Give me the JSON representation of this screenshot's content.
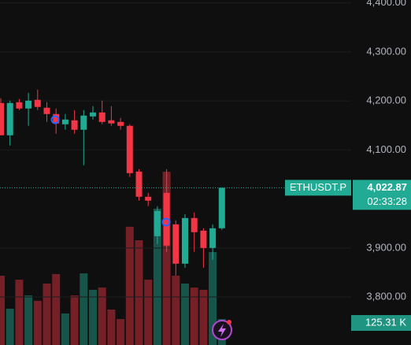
{
  "chart_data": {
    "type": "candlestick",
    "ylim": [
      3702,
      4406
    ],
    "yticks": [
      {
        "value": 4400,
        "label": "4,400.00"
      },
      {
        "value": 4300,
        "label": "4,300.00"
      },
      {
        "value": 4200,
        "label": "4,200.00"
      },
      {
        "value": 4100,
        "label": "4,100.00"
      },
      {
        "value": 3900,
        "label": "3,900.00"
      },
      {
        "value": 3800,
        "label": "3,800.00"
      }
    ],
    "volume_ylim": [
      0,
      1663
    ],
    "up_color": "#22ab94",
    "down_color": "#f23645",
    "open": [
      4195.8,
      4129.9,
      4197.4,
      4184.6,
      4202.3,
      4186.2,
      4173.3,
      4152.4,
      4160.5,
      4141.2,
      4168.5,
      4176.5,
      4160.5,
      4157.2,
      4149.2,
      4055.9,
      4004.5,
      3924.1,
      4012.5,
      3948.2,
      3867.9,
      3961.1,
      3935.4,
      3900.0,
      3940.2
    ],
    "high": [
      4205.5,
      4200.6,
      4203.9,
      4216.7,
      4223.2,
      4197.4,
      4184.6,
      4173.3,
      4181.3,
      4181.3,
      4189.4,
      4200.6,
      4189.4,
      4165.3,
      4152.4,
      4060.8,
      4012.5,
      3985.2,
      4060.8,
      3956.3,
      3969.1,
      3972.4,
      3940.2,
      3948.2,
      4020.6
    ],
    "low": [
      4129.9,
      4109.0,
      4181.3,
      4149.2,
      4181.3,
      4157.2,
      4133.1,
      4141.2,
      4133.1,
      4068.8,
      4162.1,
      4152.4,
      4149.2,
      4141.2,
      4044.7,
      3996.5,
      3985.2,
      3908.0,
      3892.0,
      3843.7,
      3859.8,
      3892.0,
      3859.8,
      3875.9,
      3937.0
    ],
    "close": [
      4129.9,
      4195.8,
      4184.6,
      4200.6,
      4187.8,
      4173.3,
      4154.1,
      4162.1,
      4141.2,
      4170.1,
      4176.5,
      4157.2,
      4154.1,
      4149.2,
      4052.7,
      4004.5,
      3996.5,
      3975.6,
      3904.8,
      3867.9,
      3961.1,
      3932.2,
      3900.0,
      3940.2,
      4022.87
    ],
    "volume": [
      334,
      175,
      315,
      239,
      213,
      296,
      342,
      152,
      239,
      345,
      266,
      277,
      171,
      125,
      570,
      505,
      315,
      657,
      835,
      334,
      296,
      277,
      266,
      448,
      125.31
    ],
    "last": {
      "symbol": "ETHUSDT.P",
      "price": {
        "value": 4022.87,
        "label": "4,022.87"
      },
      "countdown": "02:33:28",
      "volume": {
        "value": 125.31,
        "label": "125.31 K"
      }
    }
  }
}
